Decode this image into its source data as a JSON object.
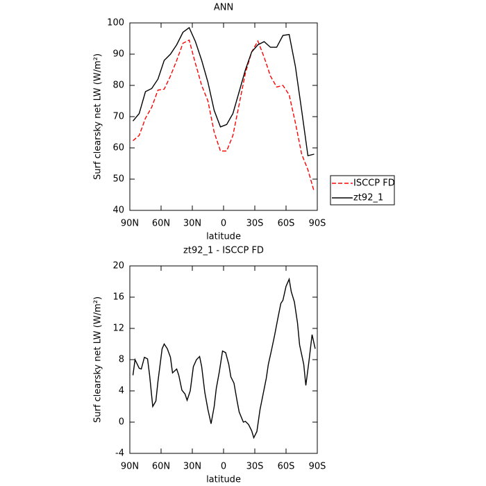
{
  "chart_data": [
    {
      "type": "line",
      "title": "ANN",
      "xlabel": "latitude",
      "ylabel": "Surf clearsky net LW (W/m²)",
      "x": [
        87,
        81,
        75,
        69,
        63,
        57,
        51,
        45,
        39,
        33,
        27,
        21,
        15,
        9,
        3,
        -3,
        -9,
        -15,
        -21,
        -27,
        -33,
        -39,
        -45,
        -51,
        -57,
        -63,
        -69,
        -75,
        -81,
        -87
      ],
      "series": [
        {
          "name": "ISCCP FD",
          "color": "#ff0000",
          "linestyle": "dashed",
          "values": [
            62.3,
            64,
            69.5,
            73,
            78.5,
            78.8,
            83,
            88,
            93.5,
            94.5,
            87,
            80,
            75,
            65,
            59,
            59,
            64,
            74,
            84,
            90.7,
            94.2,
            89,
            83,
            79.5,
            80,
            77,
            68,
            58,
            53,
            46
          ]
        },
        {
          "name": "zt92_1",
          "color": "#000000",
          "linestyle": "solid",
          "values": [
            68.6,
            71,
            78,
            79,
            82,
            88,
            90,
            93,
            97,
            98.5,
            94,
            88,
            81,
            72,
            66.7,
            67.5,
            71,
            78,
            85,
            90.7,
            93,
            94,
            92.2,
            92.2,
            96,
            96.3,
            86,
            72,
            57.5,
            58
          ]
        }
      ],
      "xlim": [
        90,
        -90
      ],
      "xticks": [
        {
          "value": 90,
          "label": "90N"
        },
        {
          "value": 60,
          "label": "60N"
        },
        {
          "value": 30,
          "label": "30N"
        },
        0,
        {
          "value": -30,
          "label": "30S"
        },
        {
          "value": -60,
          "label": "60S"
        },
        {
          "value": -90,
          "label": "90S"
        }
      ],
      "ylim": [
        40,
        100
      ],
      "yticks": [
        40,
        50,
        60,
        70,
        80,
        90,
        100
      ],
      "legend": "outside-right"
    },
    {
      "type": "line",
      "title": "zt92_1 - ISCCP FD",
      "xlabel": "latitude",
      "ylabel": "Surf clearsky net LW (W/m²)",
      "color": "#000000",
      "x": [
        87,
        85,
        81,
        79,
        76,
        73,
        71,
        68,
        65,
        63,
        59,
        57,
        54,
        51,
        49,
        45,
        43,
        40,
        37,
        35,
        32,
        29,
        26,
        23,
        21,
        18,
        15,
        12,
        9,
        7,
        4,
        1,
        -2,
        -5,
        -7,
        -10,
        -13,
        -15,
        -19,
        -21,
        -24,
        -27,
        -29,
        -32,
        -35,
        -38,
        -41,
        -43,
        -46,
        -49,
        -52,
        -55,
        -57,
        -60,
        -63,
        -65,
        -68,
        -71,
        -73,
        -77,
        -79,
        -82,
        -85,
        -88
      ],
      "values": [
        6.0,
        8.0,
        6.9,
        6.8,
        8.3,
        8.1,
        6.0,
        2.0,
        2.7,
        5.2,
        9.4,
        10.0,
        9.4,
        8.3,
        6.3,
        6.8,
        6.0,
        4.1,
        3.6,
        2.8,
        4.0,
        7.1,
        8.0,
        8.4,
        7.1,
        3.8,
        1.6,
        -0.2,
        2.0,
        4.3,
        6.5,
        9.1,
        8.9,
        7.4,
        5.8,
        5.0,
        2.7,
        1.3,
        0.0,
        0.1,
        -0.3,
        -1.1,
        -2.0,
        -1.2,
        1.6,
        3.6,
        5.6,
        7.4,
        9.2,
        11.1,
        13.2,
        15.2,
        15.6,
        17.4,
        18.3,
        16.7,
        15.4,
        12.7,
        9.9,
        7.4,
        4.7,
        7.8,
        11.2,
        9.4
      ],
      "xlim": [
        90,
        -90
      ],
      "xticks": [
        {
          "value": 90,
          "label": "90N"
        },
        {
          "value": 60,
          "label": "60N"
        },
        {
          "value": 30,
          "label": "30N"
        },
        0,
        {
          "value": -30,
          "label": "30S"
        },
        {
          "value": -60,
          "label": "60S"
        },
        {
          "value": -90,
          "label": "90S"
        }
      ],
      "ylim": [
        -4,
        20
      ],
      "yticks": [
        -4,
        0,
        4,
        8,
        12,
        16,
        20
      ]
    }
  ]
}
